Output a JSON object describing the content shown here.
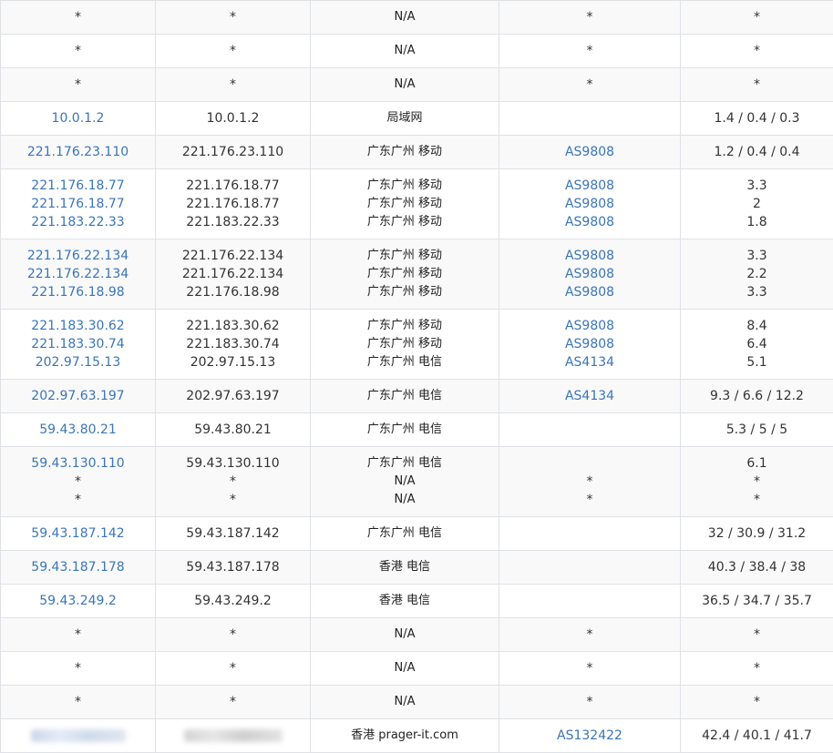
{
  "rows": [
    {
      "ip": [
        "*"
      ],
      "host": [
        "*"
      ],
      "geo": [
        "N/A"
      ],
      "asn": [
        "*"
      ],
      "rtt": [
        "*"
      ]
    },
    {
      "ip": [
        "*"
      ],
      "host": [
        "*"
      ],
      "geo": [
        "N/A"
      ],
      "asn": [
        "*"
      ],
      "rtt": [
        "*"
      ]
    },
    {
      "ip": [
        "*"
      ],
      "host": [
        "*"
      ],
      "geo": [
        "N/A"
      ],
      "asn": [
        "*"
      ],
      "rtt": [
        "*"
      ]
    },
    {
      "ip": [
        "10.0.1.2"
      ],
      "host": [
        "10.0.1.2"
      ],
      "geo": [
        "局域网"
      ],
      "asn": [
        ""
      ],
      "rtt": [
        "1.4 / 0.4 / 0.3"
      ]
    },
    {
      "ip": [
        "221.176.23.110"
      ],
      "host": [
        "221.176.23.110"
      ],
      "geo": [
        "广东广州 移动"
      ],
      "asn": [
        "AS9808"
      ],
      "rtt": [
        "1.2 / 0.4 / 0.4"
      ]
    },
    {
      "ip": [
        "221.176.18.77",
        "221.176.18.77",
        "221.183.22.33"
      ],
      "host": [
        "221.176.18.77",
        "221.176.18.77",
        "221.183.22.33"
      ],
      "geo": [
        "广东广州 移动",
        "广东广州 移动",
        "广东广州 移动"
      ],
      "asn": [
        "AS9808",
        "AS9808",
        "AS9808"
      ],
      "rtt": [
        "3.3",
        "2",
        "1.8"
      ]
    },
    {
      "ip": [
        "221.176.22.134",
        "221.176.22.134",
        "221.176.18.98"
      ],
      "host": [
        "221.176.22.134",
        "221.176.22.134",
        "221.176.18.98"
      ],
      "geo": [
        "广东广州 移动",
        "广东广州 移动",
        "广东广州 移动"
      ],
      "asn": [
        "AS9808",
        "AS9808",
        "AS9808"
      ],
      "rtt": [
        "3.3",
        "2.2",
        "3.3"
      ]
    },
    {
      "ip": [
        "221.183.30.62",
        "221.183.30.74",
        "202.97.15.13"
      ],
      "host": [
        "221.183.30.62",
        "221.183.30.74",
        "202.97.15.13"
      ],
      "geo": [
        "广东广州 移动",
        "广东广州 移动",
        "广东广州 电信"
      ],
      "asn": [
        "AS9808",
        "AS9808",
        "AS4134"
      ],
      "rtt": [
        "8.4",
        "6.4",
        "5.1"
      ]
    },
    {
      "ip": [
        "202.97.63.197"
      ],
      "host": [
        "202.97.63.197"
      ],
      "geo": [
        "广东广州 电信"
      ],
      "asn": [
        "AS4134"
      ],
      "rtt": [
        "9.3 / 6.6 / 12.2"
      ]
    },
    {
      "ip": [
        "59.43.80.21"
      ],
      "host": [
        "59.43.80.21"
      ],
      "geo": [
        "广东广州 电信"
      ],
      "asn": [
        ""
      ],
      "rtt": [
        "5.3 / 5 / 5"
      ]
    },
    {
      "ip": [
        "59.43.130.110",
        "*",
        "*"
      ],
      "host": [
        "59.43.130.110",
        "*",
        "*"
      ],
      "geo": [
        "广东广州 电信",
        "N/A",
        "N/A"
      ],
      "asn": [
        "",
        "*",
        "*"
      ],
      "rtt": [
        "6.1",
        "*",
        "*"
      ]
    },
    {
      "ip": [
        "59.43.187.142"
      ],
      "host": [
        "59.43.187.142"
      ],
      "geo": [
        "广东广州 电信"
      ],
      "asn": [
        ""
      ],
      "rtt": [
        "32 / 30.9 / 31.2"
      ]
    },
    {
      "ip": [
        "59.43.187.178"
      ],
      "host": [
        "59.43.187.178"
      ],
      "geo": [
        "香港 电信"
      ],
      "asn": [
        ""
      ],
      "rtt": [
        "40.3 / 38.4 / 38"
      ]
    },
    {
      "ip": [
        "59.43.249.2"
      ],
      "host": [
        "59.43.249.2"
      ],
      "geo": [
        "香港 电信"
      ],
      "asn": [
        ""
      ],
      "rtt": [
        "36.5 / 34.7 / 35.7"
      ]
    },
    {
      "ip": [
        "*"
      ],
      "host": [
        "*"
      ],
      "geo": [
        "N/A"
      ],
      "asn": [
        "*"
      ],
      "rtt": [
        "*"
      ]
    },
    {
      "ip": [
        "*"
      ],
      "host": [
        "*"
      ],
      "geo": [
        "N/A"
      ],
      "asn": [
        "*"
      ],
      "rtt": [
        "*"
      ]
    },
    {
      "ip": [
        "*"
      ],
      "host": [
        "*"
      ],
      "geo": [
        "N/A"
      ],
      "asn": [
        "*"
      ],
      "rtt": [
        "*"
      ]
    },
    {
      "ip": [
        "[redacted]"
      ],
      "host": [
        "[redacted]"
      ],
      "geo": [
        "香港 prager-it.com"
      ],
      "asn": [
        "AS132422"
      ],
      "rtt": [
        "42.4 / 40.1 / 41.7"
      ]
    }
  ],
  "colors": {
    "link": "#3a75b8",
    "stripe": "#f9f9f9",
    "border": "#dee2e6"
  }
}
